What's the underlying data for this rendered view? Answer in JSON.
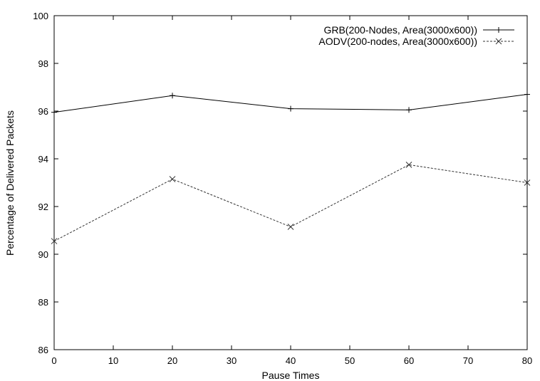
{
  "chart_data": {
    "type": "line",
    "title": "",
    "xlabel": "Pause Times",
    "ylabel": "Percentage of Delivered Packets",
    "xlim": [
      0,
      80
    ],
    "ylim": [
      86,
      100
    ],
    "xticks": [
      0,
      10,
      20,
      30,
      40,
      50,
      60,
      70,
      80
    ],
    "yticks": [
      86,
      88,
      90,
      92,
      94,
      96,
      98,
      100
    ],
    "grid": false,
    "legend_position": "top-right",
    "x": [
      0,
      20,
      40,
      60,
      80
    ],
    "series": [
      {
        "name": "GRB(200-Nodes, Area(3000x600))",
        "values": [
          95.95,
          96.65,
          96.1,
          96.05,
          96.7
        ],
        "color": "#000000",
        "line_style": "solid",
        "marker": "plus"
      },
      {
        "name": "AODV(200-nodes, Area(3000x600))",
        "values": [
          90.55,
          93.15,
          91.15,
          93.75,
          93.0
        ],
        "color": "#333333",
        "line_style": "dashed",
        "marker": "cross"
      }
    ]
  }
}
